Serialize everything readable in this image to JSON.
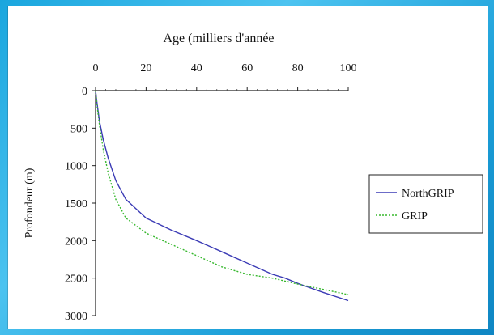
{
  "colors": {
    "page_bg": "#1aa6de",
    "northgrip": "#3b3bb5",
    "grip": "#38b82f"
  },
  "chart_data": {
    "type": "line",
    "title": "Age (milliers d'année",
    "xlabel": "Age (milliers d'année",
    "ylabel": "Profondeur (m)",
    "x_axis_position": "top",
    "y_axis_inverted": true,
    "xlim": [
      0,
      100
    ],
    "ylim": [
      0,
      3000
    ],
    "xticks": [
      0,
      20,
      40,
      60,
      80,
      100
    ],
    "yticks": [
      0,
      500,
      1000,
      1500,
      2000,
      2500,
      3000
    ],
    "grid": false,
    "legend_position": "right",
    "series": [
      {
        "name": "NorthGRIP",
        "color": "#3b3bb5",
        "dash": "solid",
        "x": [
          0,
          0.5,
          1.5,
          3,
          5,
          8,
          12,
          20,
          30,
          40,
          50,
          60,
          70,
          75,
          80,
          90,
          100
        ],
        "y": [
          0,
          150,
          400,
          650,
          900,
          1200,
          1450,
          1700,
          1860,
          2000,
          2150,
          2300,
          2450,
          2500,
          2570,
          2690,
          2800
        ]
      },
      {
        "name": "GRIP",
        "color": "#38b82f",
        "dash": "dotted",
        "x": [
          0,
          0.5,
          1.5,
          3,
          5,
          8,
          12,
          20,
          30,
          40,
          50,
          60,
          70,
          75,
          80,
          90,
          100
        ],
        "y": [
          0,
          180,
          450,
          780,
          1100,
          1450,
          1700,
          1900,
          2050,
          2200,
          2350,
          2450,
          2500,
          2540,
          2580,
          2650,
          2720
        ]
      }
    ]
  }
}
